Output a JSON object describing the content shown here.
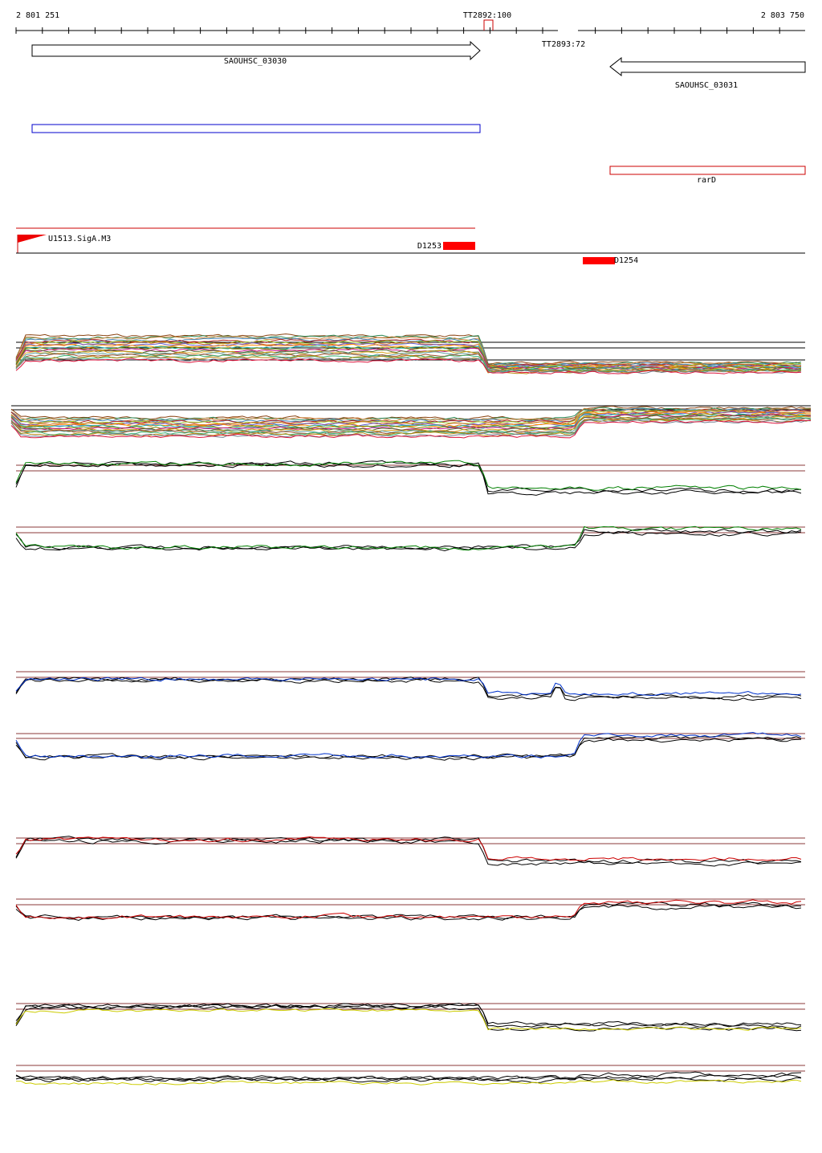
{
  "ruler": {
    "start": "2 801 251",
    "end": "2 803 750"
  },
  "terminators": [
    {
      "label": "TT2892:100"
    },
    {
      "label": "TT2893:72"
    }
  ],
  "genes": [
    {
      "label": "SAOUHSC_03030"
    },
    {
      "label": "SAOUHSC_03031"
    }
  ],
  "operons": [
    {
      "label": "rarD"
    }
  ],
  "promoters": [
    {
      "label": "U1513.SigA.M3"
    }
  ],
  "regions": [
    {
      "label": "D1253"
    },
    {
      "label": "D1254"
    }
  ]
}
